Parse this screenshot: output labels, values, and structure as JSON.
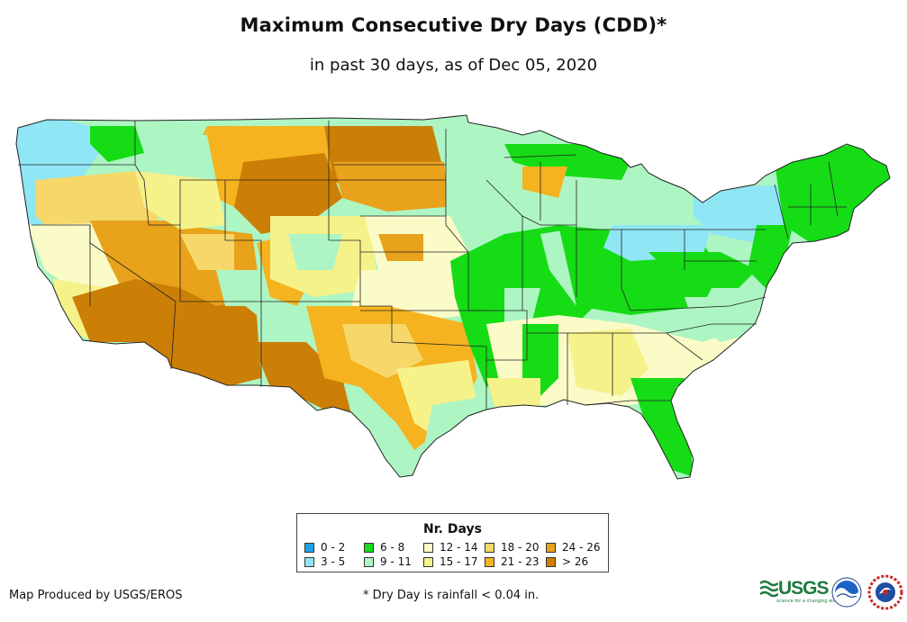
{
  "title": "Maximum Consecutive Dry Days (CDD)*",
  "subtitle": "in past 30 days, as of Dec 05, 2020",
  "legend": {
    "title": "Nr. Days",
    "items": [
      {
        "label": "0 - 2",
        "color": "#1fa2e8"
      },
      {
        "label": "3 - 5",
        "color": "#8fe6f5"
      },
      {
        "label": "6 - 8",
        "color": "#15dc15"
      },
      {
        "label": "9 - 11",
        "color": "#aef5c4"
      },
      {
        "label": "12 - 14",
        "color": "#fbfbc8"
      },
      {
        "label": "15 - 17",
        "color": "#f6f28a"
      },
      {
        "label": "18 - 20",
        "color": "#f6d86a"
      },
      {
        "label": "21 - 23",
        "color": "#f5b320"
      },
      {
        "label": "24 - 26",
        "color": "#e8a21c"
      },
      {
        "label": "> 26",
        "color": "#cc7f06"
      }
    ]
  },
  "footer": {
    "credit": "Map Produced by USGS/EROS",
    "note": "* Dry Day is rainfall < 0.04 in."
  },
  "logos": {
    "usgs_word": "USGS",
    "usgs_tagline": "science for a changing world"
  }
}
